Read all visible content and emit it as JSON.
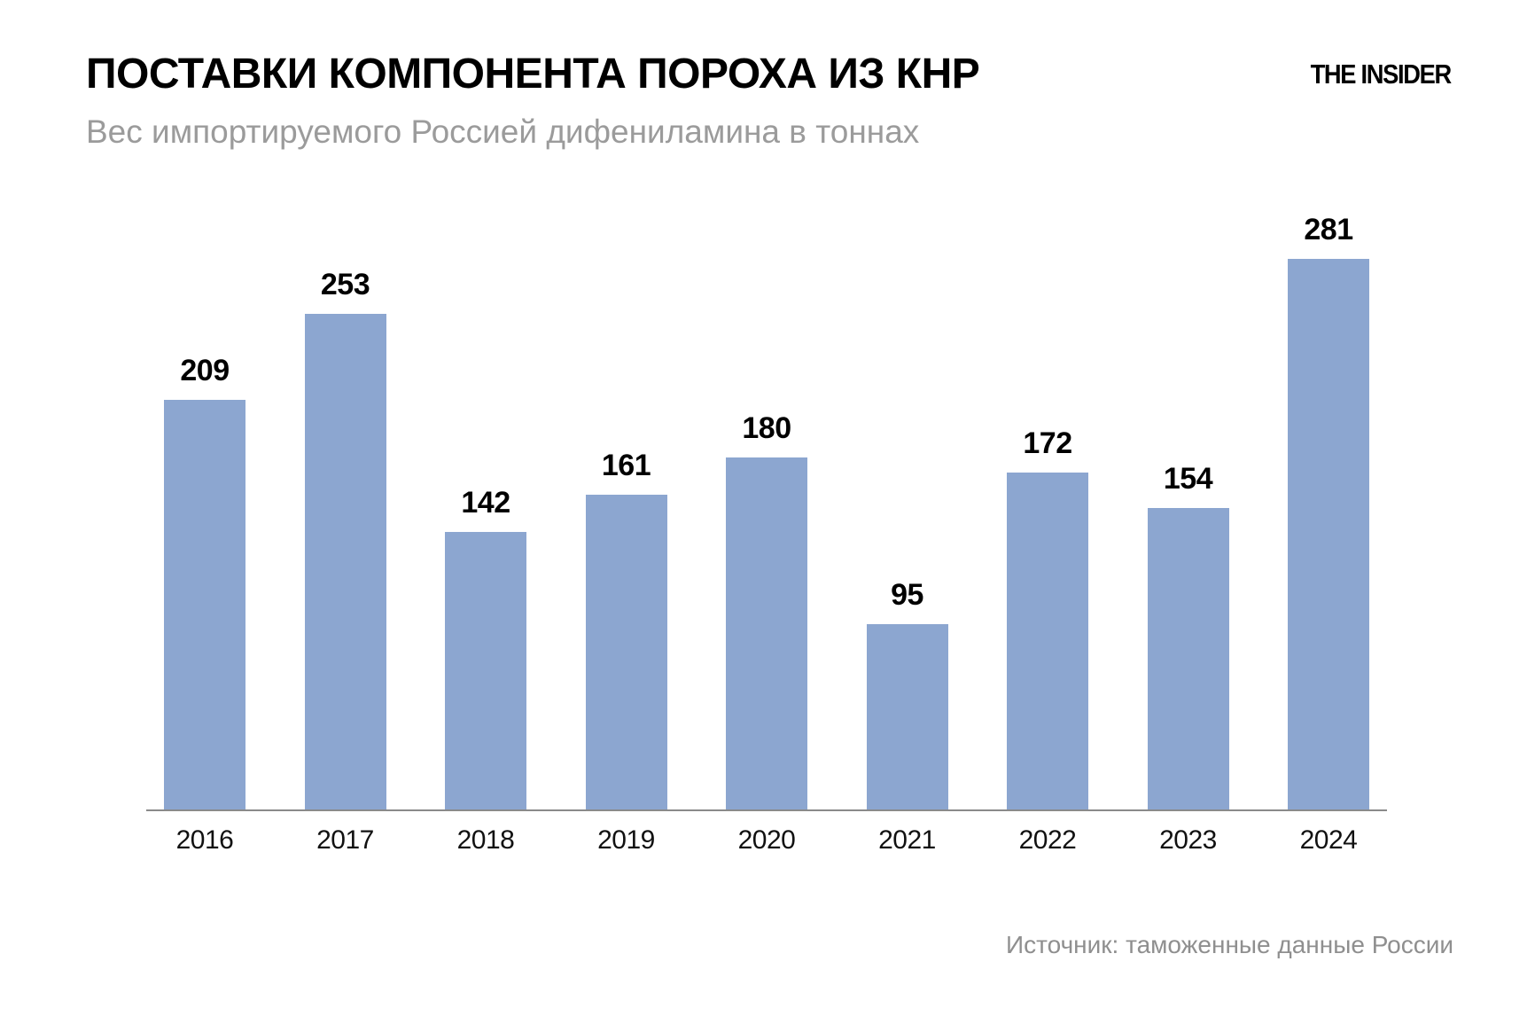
{
  "header": {
    "title": "ПОСТАВКИ КОМПОНЕНТА ПОРОХА ИЗ КНР",
    "subtitle": "Вес импортируемого Россией дифениламина в тоннах",
    "logo": "THE INSIDER"
  },
  "footer": {
    "source": "Источник: таможенные данные России"
  },
  "colors": {
    "bar": "#8ca6d0",
    "axis": "#8a8a8a",
    "subtitle_gray": "#9b9b9b",
    "source_gray": "#8f8f8f"
  },
  "chart_data": {
    "type": "bar",
    "title": "ПОСТАВКИ КОМПОНЕНТА ПОРОХА ИЗ КНР",
    "subtitle": "Вес импортируемого Россией дифениламина в тоннах",
    "source": "Источник: таможенные данные России",
    "categories": [
      "2016",
      "2017",
      "2018",
      "2019",
      "2020",
      "2021",
      "2022",
      "2023",
      "2024"
    ],
    "values": [
      209,
      253,
      142,
      161,
      180,
      95,
      172,
      154,
      281
    ],
    "unit": "тонны",
    "xlabel": "",
    "ylabel": "",
    "grid": false,
    "legend": "none",
    "data_labels": true,
    "bar_color": "#8ca6d0"
  }
}
